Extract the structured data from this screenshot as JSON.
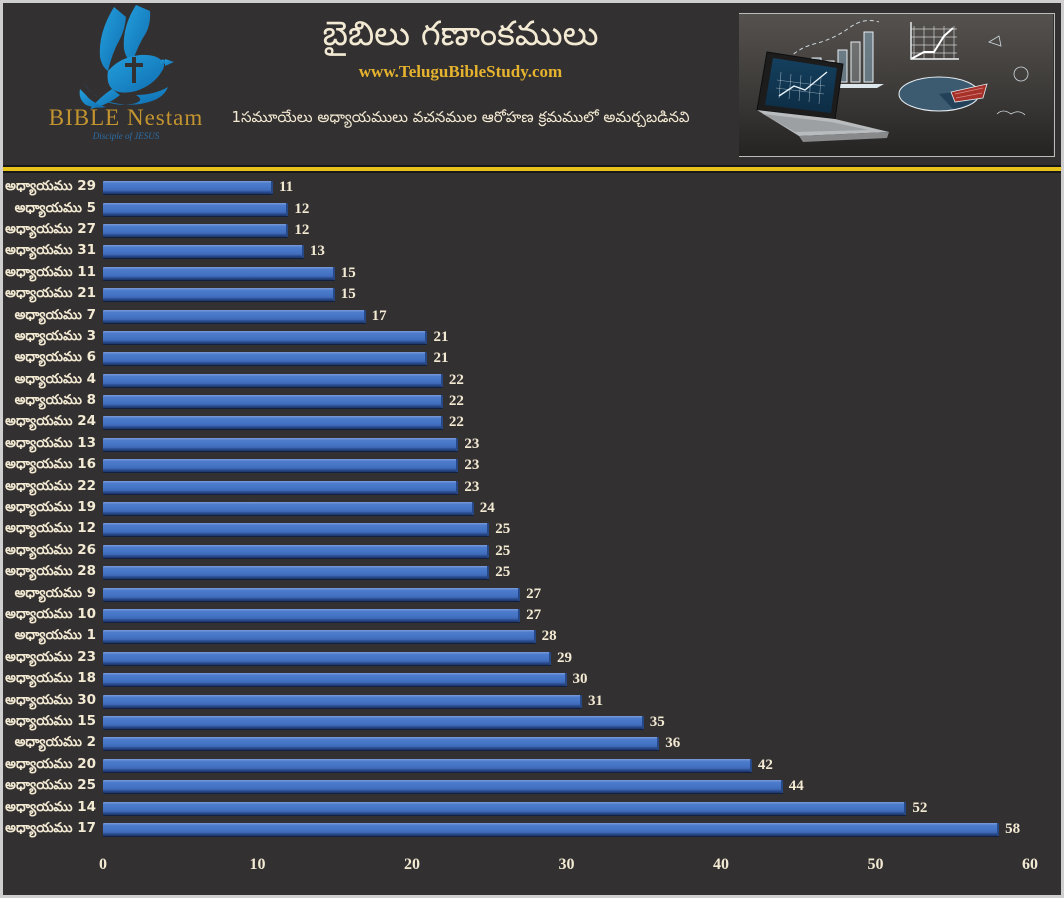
{
  "colors": {
    "background": "#333031",
    "cream_text": "#f3ead3",
    "gold_url": "#e6b32e",
    "divider_gold": "#e6c21a",
    "bar_blue": "#4472c4",
    "bar_blue_dark": "#274988",
    "logo_gold": "#c4952f",
    "logo_blue": "#1e8fd5"
  },
  "header": {
    "title": "బైబిలు గణాంకములు",
    "website": "www.TeluguBibleStudy.com",
    "subtitle": "1సమూయేలు అధ్యాయములు వచనముల ఆరోహణ క్రమములో అమర్చబడినవి",
    "logo": {
      "name": "BIBLE Nestam",
      "tagline": "Disciple of JESUS",
      "icon": "dove-cross-hand-icon"
    },
    "photo": "laptop-with-chalkboard-charts"
  },
  "chart_data": {
    "type": "bar",
    "orientation": "horizontal",
    "title": "బైబిలు గణాంకములు",
    "subtitle": "1సమూయేలు అధ్యాయములు వచనముల ఆరోహణ క్రమములో అమర్చబడినవి",
    "categories": [
      "అధ్యాయము 29",
      "అధ్యాయము 5",
      "అధ్యాయము 27",
      "అధ్యాయము 31",
      "అధ్యాయము 11",
      "అధ్యాయము 21",
      "అధ్యాయము 7",
      "అధ్యాయము 3",
      "అధ్యాయము 6",
      "అధ్యాయము 4",
      "అధ్యాయము 8",
      "అధ్యాయము 24",
      "అధ్యాయము 13",
      "అధ్యాయము 16",
      "అధ్యాయము 22",
      "అధ్యాయము 19",
      "అధ్యాయము 12",
      "అధ్యాయము 26",
      "అధ్యాయము 28",
      "అధ్యాయము 9",
      "అధ్యాయము 10",
      "అధ్యాయము 1",
      "అధ్యాయము 23",
      "అధ్యాయము 18",
      "అధ్యాయము 30",
      "అధ్యాయము 15",
      "అధ్యాయము 2",
      "అధ్యాయము 20",
      "అధ్యాయము 25",
      "అధ్యాయము 14",
      "అధ్యాయము 17"
    ],
    "values": [
      11,
      12,
      12,
      13,
      15,
      15,
      17,
      21,
      21,
      22,
      22,
      22,
      23,
      23,
      23,
      24,
      25,
      25,
      25,
      27,
      27,
      28,
      29,
      30,
      31,
      35,
      36,
      42,
      44,
      52,
      58
    ],
    "xlabel": "",
    "ylabel": "",
    "xlim": [
      0,
      60
    ],
    "xticks": [
      0,
      10,
      20,
      30,
      40,
      50,
      60
    ],
    "grid": false,
    "legend": false,
    "bar_color": "#4472c4",
    "value_labels_shown": true
  }
}
